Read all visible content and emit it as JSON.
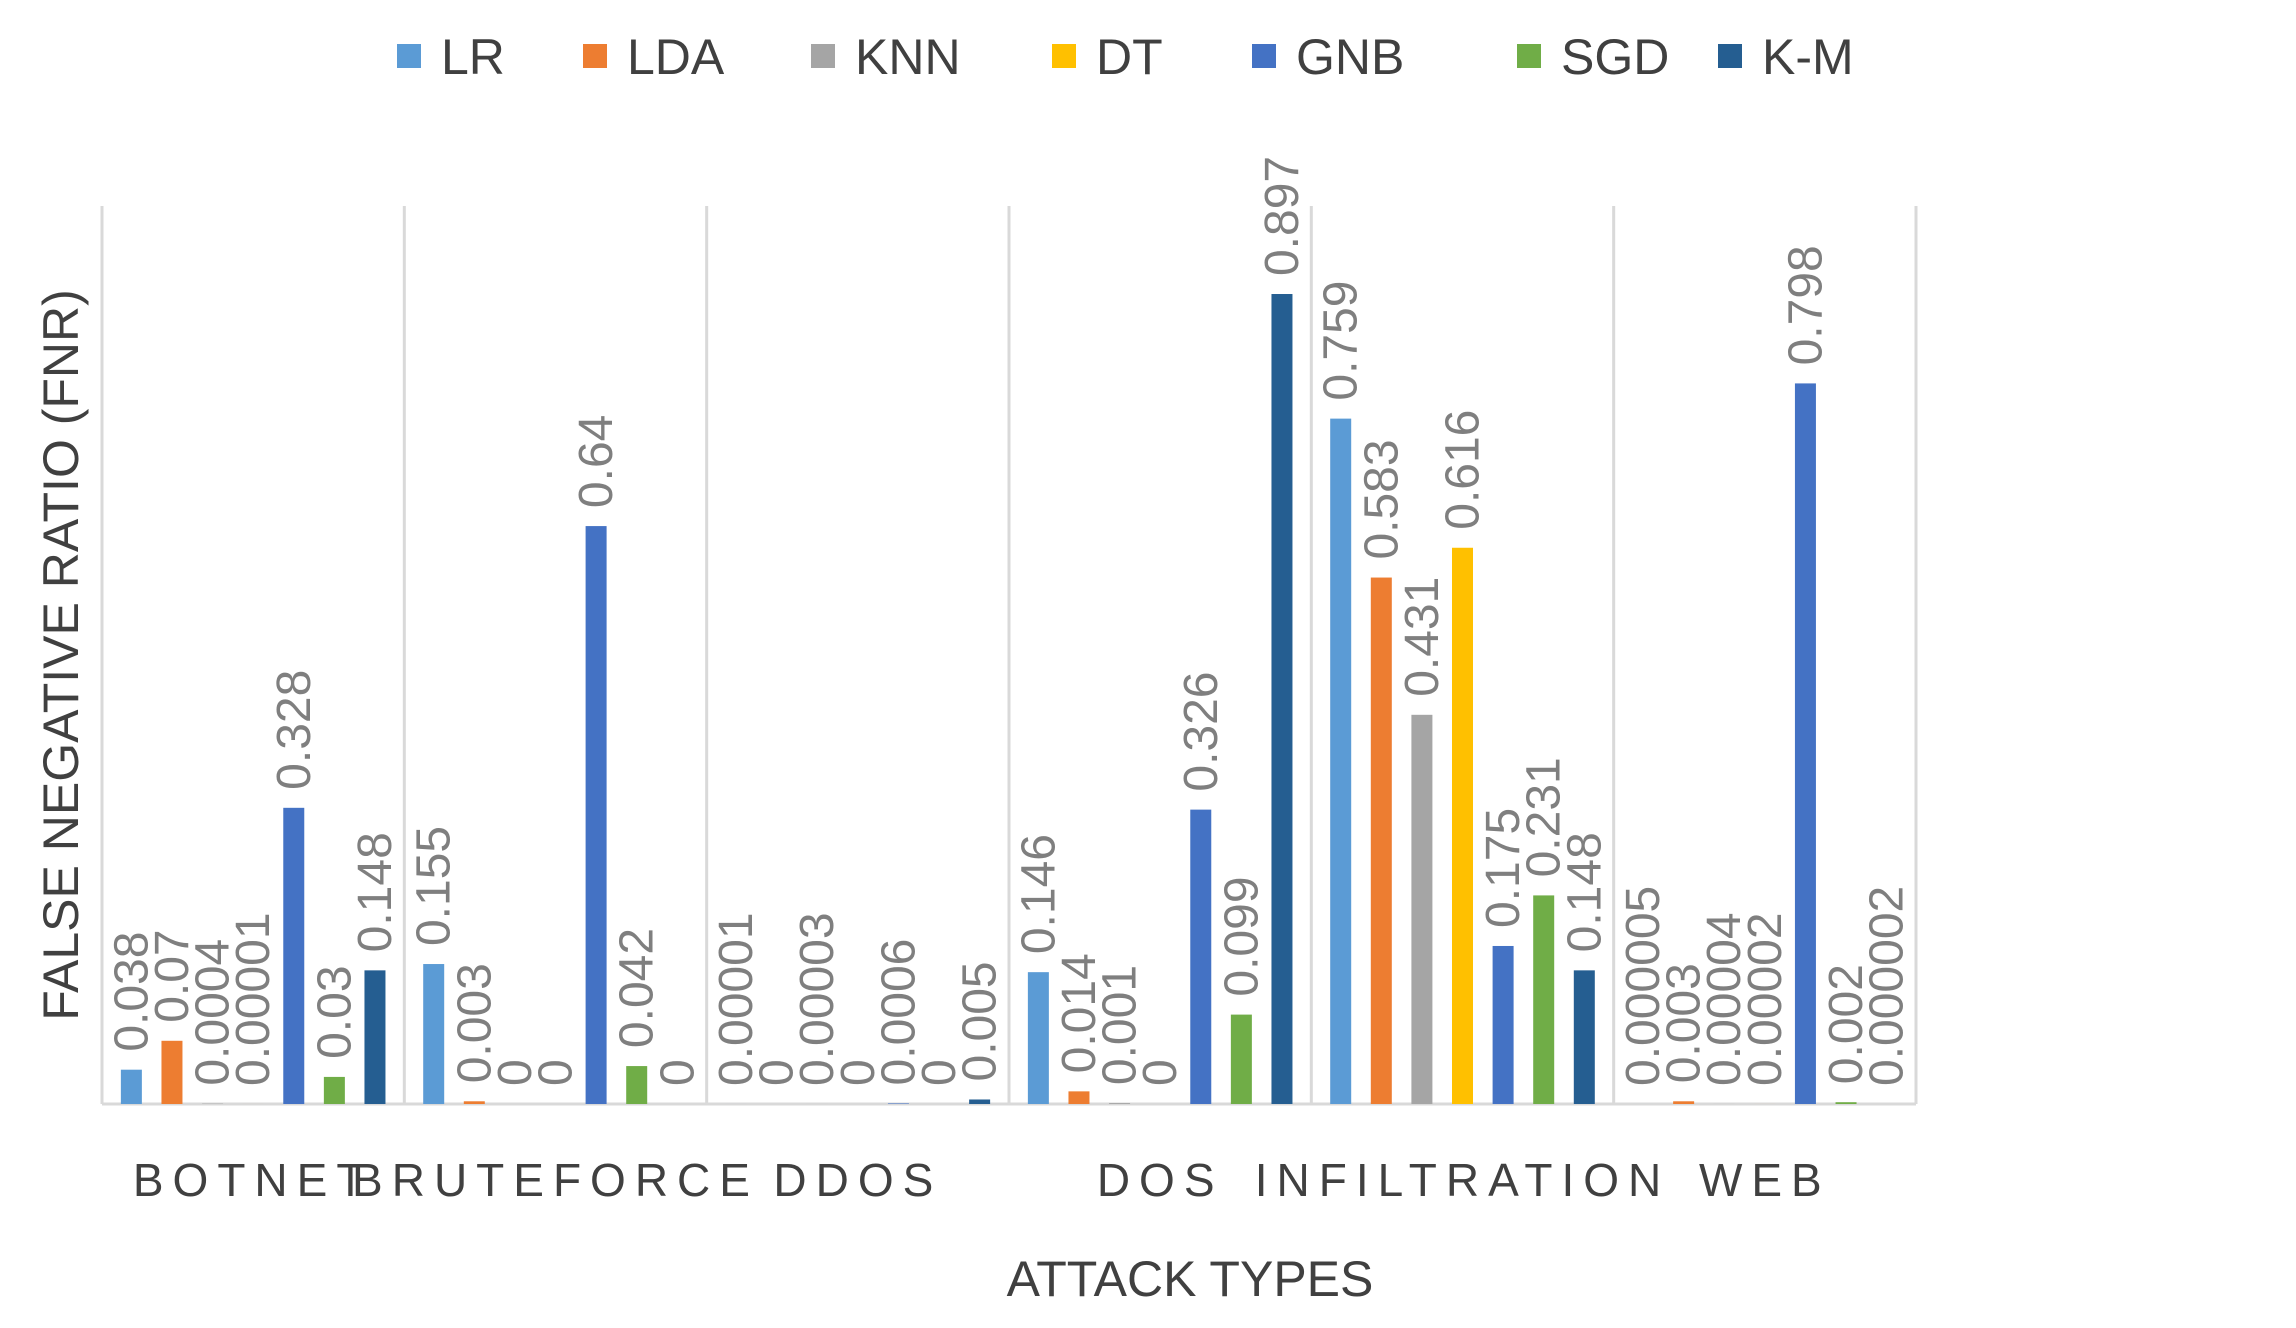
{
  "chart_data": {
    "type": "bar",
    "title": "",
    "xlabel": "ATTACK TYPES",
    "ylabel": "FALSE NEGATIVE RATIO (FNR)",
    "ylim": [
      0,
      1.0
    ],
    "grid": false,
    "legend_position": "top",
    "categories": [
      "BOTNET",
      "BRUTEFORCE",
      "DDOS",
      "DOS",
      "INFILTRATION",
      "WEB"
    ],
    "series": [
      {
        "name": "LR",
        "color": "#5B9BD5",
        "values": [
          0.038,
          0.155,
          1e-05,
          0.146,
          0.759,
          5e-06
        ],
        "labels": [
          "0.038",
          "0.155",
          "0.00001",
          "0.146",
          "0.759",
          "0.000005"
        ]
      },
      {
        "name": "LDA",
        "color": "#ED7D31",
        "values": [
          0.07,
          0.003,
          0,
          0.014,
          0.583,
          0.003
        ],
        "labels": [
          "0.07",
          "0.003",
          "0",
          "0.014",
          "0.583",
          "0.003"
        ]
      },
      {
        "name": "KNN",
        "color": "#A5A5A5",
        "values": [
          0.0004,
          0,
          3e-05,
          0.001,
          0.431,
          4e-05
        ],
        "labels": [
          "0.0004",
          "0",
          "0.00003",
          "0.001",
          "0.431",
          "0.00004"
        ]
      },
      {
        "name": "DT",
        "color": "#FFC000",
        "values": [
          1e-05,
          0,
          0,
          0,
          0.616,
          2e-05
        ],
        "labels": [
          "0.00001",
          "0",
          "0",
          "0",
          "0.616",
          "0.00002"
        ]
      },
      {
        "name": "GNB",
        "color": "#4472C4",
        "values": [
          0.328,
          0.64,
          0.0006,
          0.326,
          0.175,
          0.798
        ],
        "labels": [
          "0.328",
          "0.64",
          "0.0006",
          "0.326",
          "0.175",
          "0.798"
        ]
      },
      {
        "name": "SGD",
        "color": "#70AD47",
        "values": [
          0.03,
          0.042,
          0,
          0.099,
          0.231,
          0.002
        ],
        "labels": [
          "0.03",
          "0.042",
          "0",
          "0.099",
          "0.231",
          "0.002"
        ]
      },
      {
        "name": "K-M",
        "color": "#255E91",
        "values": [
          0.148,
          0,
          0.005,
          0.897,
          0.148,
          2e-06
        ],
        "labels": [
          "0.148",
          "0",
          "0.005",
          "0.897",
          "0.148",
          "0.000002"
        ]
      }
    ]
  }
}
